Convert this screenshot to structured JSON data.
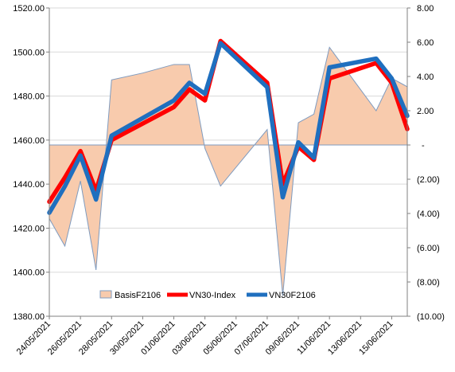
{
  "chart_data": {
    "type": "line",
    "left_axis": {
      "ylim": [
        1380,
        1520
      ],
      "ticks": [
        "1380.00",
        "1400.00",
        "1420.00",
        "1440.00",
        "1460.00",
        "1480.00",
        "1500.00",
        "1520.00"
      ]
    },
    "right_axis": {
      "ylim": [
        -10,
        8
      ],
      "ticks": [
        {
          "value": 8,
          "label": "8.00"
        },
        {
          "value": 6,
          "label": "6.00"
        },
        {
          "value": 4,
          "label": "4.00"
        },
        {
          "value": 2,
          "label": "2.00"
        },
        {
          "value": 0,
          "label": "-"
        },
        {
          "value": -2,
          "label": "(2.00)"
        },
        {
          "value": -4,
          "label": "(4.00)"
        },
        {
          "value": -6,
          "label": "(6.00)"
        },
        {
          "value": -8,
          "label": "(8.00)"
        },
        {
          "value": -10,
          "label": "(10.00)"
        }
      ]
    },
    "x_tick_labels": [
      "24/05/2021",
      "26/05/2021",
      "28/05/2021",
      "30/05/2021",
      "01/06/2021",
      "03/06/2021",
      "05/06/2021",
      "07/06/2021",
      "09/06/2021",
      "11/06/2021",
      "13/06/2021",
      "15/06/2021"
    ],
    "x": [
      "24/05/2021",
      "25/05/2021",
      "26/05/2021",
      "27/05/2021",
      "28/05/2021",
      "01/06/2021",
      "02/06/2021",
      "03/06/2021",
      "04/06/2021",
      "07/06/2021",
      "08/06/2021",
      "09/06/2021",
      "10/06/2021",
      "11/06/2021",
      "14/06/2021",
      "15/06/2021",
      "16/06/2021"
    ],
    "xlim": [
      "24/05/2021",
      "16/06/2021"
    ],
    "series": [
      {
        "name": "BasisF2106",
        "type": "area",
        "axis": "right",
        "color": "#f8cbad",
        "outline": "#7f9bbf",
        "x": [
          "24/05/2021",
          "25/05/2021",
          "26/05/2021",
          "27/05/2021",
          "28/05/2021",
          "30/05/2021",
          "01/06/2021",
          "02/06/2021",
          "03/06/2021",
          "04/06/2021",
          "07/06/2021",
          "08/06/2021",
          "09/06/2021",
          "10/06/2021",
          "11/06/2021",
          "14/06/2021",
          "15/06/2021",
          "16/06/2021"
        ],
        "values": [
          -4.3,
          -5.9,
          -2.1,
          -7.3,
          3.8,
          4.2,
          4.7,
          4.7,
          -0.2,
          -2.4,
          0.9,
          -8.8,
          1.3,
          1.8,
          5.7,
          2.0,
          3.9,
          3.4
        ]
      },
      {
        "name": "VN30-Index",
        "type": "line",
        "axis": "left",
        "color": "#ff0000",
        "values": [
          1432,
          1443,
          1455,
          1437,
          1460,
          1475,
          1483,
          1478,
          1505,
          1486,
          1440,
          1457,
          1451,
          1488,
          1495,
          1486,
          1465
        ]
      },
      {
        "name": "VN30F2106",
        "type": "line",
        "axis": "left",
        "color": "#1f6fbf",
        "values": [
          1427,
          1439,
          1453,
          1433,
          1462,
          1478,
          1486,
          1481,
          1504,
          1484,
          1434,
          1459,
          1452,
          1493,
          1497,
          1488,
          1471
        ]
      }
    ],
    "legend": {
      "placement": "bottom-center",
      "items": [
        "BasisF2106",
        "VN30-Index",
        "VN30F2106"
      ]
    },
    "grid": {
      "horizontal": true,
      "vertical": false
    }
  }
}
